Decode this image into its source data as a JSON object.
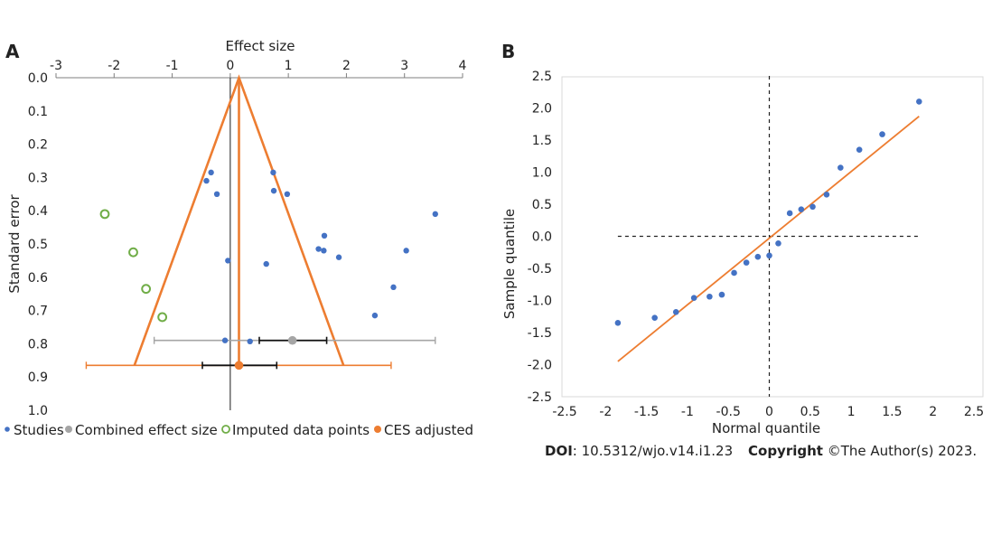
{
  "colors": {
    "studies": "#4472c4",
    "combined": "#a5a5a5",
    "imputed": "#70ad47",
    "adjusted": "#ed7d31",
    "axis": "#7f7f7f",
    "text": "#222222"
  },
  "chart_data": [
    {
      "type": "scatter",
      "panel": "A",
      "xlabel": "Effect size",
      "ylabel": "Standard error",
      "xlim": [
        -3,
        4
      ],
      "ylim": [
        0,
        1
      ],
      "x_ticks": [
        "-3",
        "-2",
        "-1",
        "0",
        "1",
        "2",
        "3",
        "4"
      ],
      "y_ticks": [
        "0.0",
        "0.1",
        "0.2",
        "0.3",
        "0.4",
        "0.5",
        "0.6",
        "0.7",
        "0.8",
        "0.9",
        "1.0"
      ],
      "y_inverted": true,
      "legend": [
        {
          "label": "Studies",
          "marker": "filled",
          "color": "#4472c4"
        },
        {
          "label": "Combined effect size",
          "marker": "filled",
          "color": "#a5a5a5"
        },
        {
          "label": "Imputed data points",
          "marker": "hollow",
          "color": "#70ad47"
        },
        {
          "label": "CES adjusted",
          "marker": "filled",
          "color": "#ed7d31"
        }
      ],
      "legend_position": "bottom",
      "studies": [
        {
          "x": -0.33,
          "y": 0.285
        },
        {
          "x": -0.41,
          "y": 0.31
        },
        {
          "x": -0.23,
          "y": 0.35
        },
        {
          "x": 0.74,
          "y": 0.285
        },
        {
          "x": 0.75,
          "y": 0.34
        },
        {
          "x": 0.98,
          "y": 0.35
        },
        {
          "x": 1.62,
          "y": 0.475
        },
        {
          "x": 1.52,
          "y": 0.515
        },
        {
          "x": 1.61,
          "y": 0.52
        },
        {
          "x": 1.87,
          "y": 0.54
        },
        {
          "x": 3.53,
          "y": 0.41
        },
        {
          "x": 3.03,
          "y": 0.52
        },
        {
          "x": -0.04,
          "y": 0.55
        },
        {
          "x": 0.62,
          "y": 0.56
        },
        {
          "x": 2.81,
          "y": 0.63
        },
        {
          "x": 2.49,
          "y": 0.715
        },
        {
          "x": -0.09,
          "y": 0.79
        },
        {
          "x": 0.34,
          "y": 0.793
        }
      ],
      "imputed": [
        {
          "x": -2.16,
          "y": 0.41
        },
        {
          "x": -1.67,
          "y": 0.525
        },
        {
          "x": -1.45,
          "y": 0.635
        },
        {
          "x": -1.17,
          "y": 0.72
        }
      ],
      "combined": {
        "x": 1.07,
        "y": 0.79,
        "ci_low": 0.5,
        "ci_high": 1.66,
        "pi_low": -1.31,
        "pi_high": 3.53
      },
      "adjusted": {
        "x": 0.15,
        "y": 0.865,
        "ci_low": -0.48,
        "ci_high": 0.8,
        "pi_low": -2.48,
        "pi_high": 2.77
      },
      "funnel": {
        "apex": {
          "x": 0.15,
          "y": 0.0
        },
        "left_base": {
          "x": -1.65,
          "y": 0.865
        },
        "right_base": {
          "x": 1.95,
          "y": 0.865
        }
      }
    },
    {
      "type": "scatter",
      "panel": "B",
      "xlabel": "Normal quantile",
      "ylabel": "Sample quantile",
      "xlim": [
        -2.5,
        2.5
      ],
      "ylim": [
        -2.5,
        2.5
      ],
      "x_ticks": [
        "-2.5",
        "-2",
        "-1.5",
        "-1",
        "-0.5",
        "0",
        "0.5",
        "1",
        "1.5",
        "2",
        "2.5"
      ],
      "y_ticks": [
        "2.5",
        "2.0",
        "1.5",
        "1.0",
        "0.5",
        "0.0",
        "-0.5",
        "-1.0",
        "-1.5",
        "-2.0",
        "-2.5"
      ],
      "points": [
        {
          "x": -1.85,
          "y": -1.35
        },
        {
          "x": -1.4,
          "y": -1.27
        },
        {
          "x": -1.14,
          "y": -1.18
        },
        {
          "x": -0.92,
          "y": -0.96
        },
        {
          "x": -0.73,
          "y": -0.94
        },
        {
          "x": -0.58,
          "y": -0.91
        },
        {
          "x": -0.43,
          "y": -0.57
        },
        {
          "x": -0.28,
          "y": -0.41
        },
        {
          "x": -0.14,
          "y": -0.32
        },
        {
          "x": 0.0,
          "y": -0.3
        },
        {
          "x": 0.11,
          "y": -0.11
        },
        {
          "x": 0.25,
          "y": 0.36
        },
        {
          "x": 0.39,
          "y": 0.42
        },
        {
          "x": 0.53,
          "y": 0.46
        },
        {
          "x": 0.7,
          "y": 0.65
        },
        {
          "x": 0.87,
          "y": 1.07
        },
        {
          "x": 1.1,
          "y": 1.35
        },
        {
          "x": 1.38,
          "y": 1.59
        },
        {
          "x": 1.83,
          "y": 2.1
        }
      ],
      "fit_line": [
        {
          "x": -1.85,
          "y": -1.95
        },
        {
          "x": 1.83,
          "y": 1.87
        }
      ],
      "ref_lines": {
        "horizontal_y": 0,
        "vertical_x": 0,
        "hline_from_x": -1.85,
        "hline_to_x": 1.83
      }
    }
  ],
  "footer": {
    "doi_label": "DOI",
    "doi_value": ": 10.5312/wjo.v14.i1.23",
    "copyright_label": "Copyright",
    "copyright_value": " ©The Author(s) 2023."
  }
}
